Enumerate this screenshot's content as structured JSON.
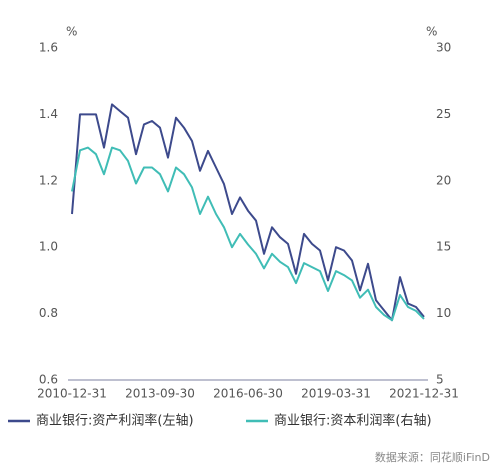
{
  "chart_data": {
    "type": "line",
    "y_unit": "%",
    "y2_unit": "%",
    "categories": [
      "2010-12-31",
      null,
      null,
      null,
      null,
      null,
      null,
      null,
      null,
      null,
      null,
      "2013-09-30",
      null,
      null,
      null,
      null,
      null,
      null,
      null,
      null,
      null,
      null,
      "2016-06-30",
      null,
      null,
      null,
      null,
      null,
      null,
      null,
      null,
      null,
      null,
      "2019-03-31",
      null,
      null,
      null,
      null,
      null,
      null,
      null,
      null,
      null,
      null,
      "2021-12-31"
    ],
    "ylim": [
      0.6,
      1.6
    ],
    "yticks": [
      0.6,
      0.8,
      {
        "value": 1,
        "label": "1.0"
      },
      1.2,
      1.4,
      1.6
    ],
    "y2lim": [
      5,
      30
    ],
    "y2ticks": [
      5,
      10,
      15,
      20,
      25,
      30
    ],
    "series": [
      {
        "name": "商业银行:资产利润率(左轴)",
        "color": "#3d4a8c",
        "values": [
          1.1,
          1.4,
          1.4,
          1.4,
          1.3,
          1.43,
          1.41,
          1.39,
          1.28,
          1.37,
          1.38,
          1.36,
          1.27,
          1.39,
          1.36,
          1.32,
          1.23,
          1.29,
          1.24,
          1.19,
          1.1,
          1.15,
          1.11,
          1.08,
          0.98,
          1.06,
          1.03,
          1.01,
          0.92,
          1.04,
          1.01,
          0.99,
          0.9,
          1.0,
          0.99,
          0.96,
          0.87,
          0.95,
          0.84,
          0.81,
          0.78,
          0.91,
          0.83,
          0.82,
          0.79
        ]
      },
      {
        "name": "商业银行:资本利润率(右轴)",
        "color": "#40bdb6",
        "axis": "y2",
        "values": [
          19.2,
          22.3,
          22.5,
          22.0,
          20.5,
          22.5,
          22.3,
          21.5,
          19.8,
          21.0,
          21.0,
          20.5,
          19.2,
          21.0,
          20.5,
          19.5,
          17.5,
          18.8,
          17.5,
          16.5,
          15.0,
          16.0,
          15.2,
          14.5,
          13.4,
          14.5,
          13.9,
          13.5,
          12.3,
          13.8,
          13.5,
          13.2,
          11.7,
          13.2,
          12.9,
          12.5,
          11.2,
          11.8,
          10.5,
          9.9,
          9.5,
          11.4,
          10.5,
          10.2,
          9.6
        ]
      }
    ],
    "source": "数据来源：同花顺iFinD"
  }
}
